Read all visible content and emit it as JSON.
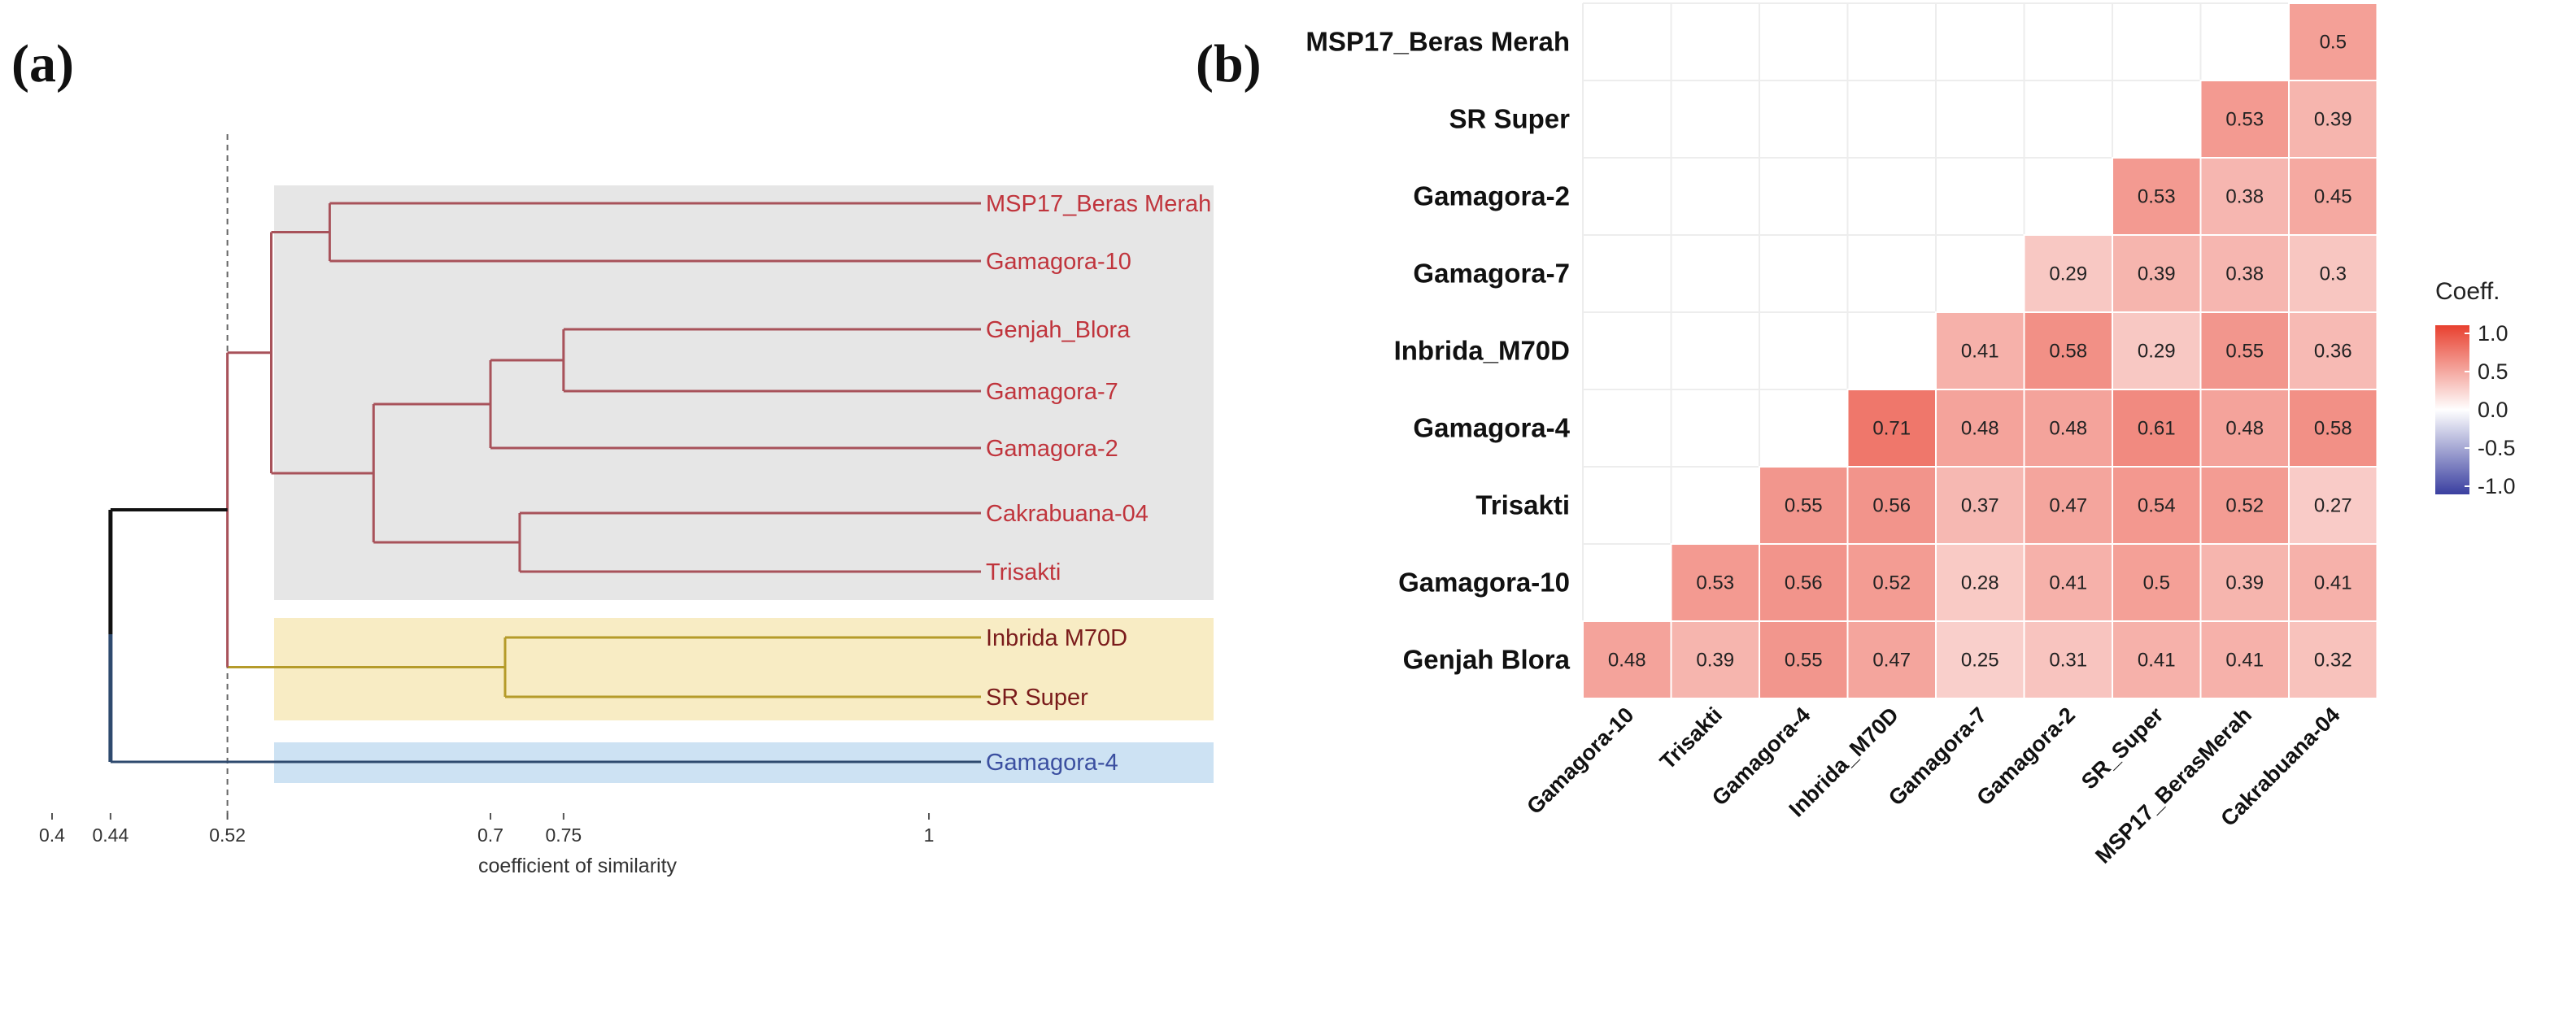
{
  "panels": {
    "a": "(a)",
    "b": "(b)"
  },
  "chart_data": [
    {
      "type": "dendrogram",
      "panel": "(a)",
      "xlabel": "coefficient of similarity",
      "xticks": [
        0.4,
        0.44,
        0.52,
        0.7,
        0.75,
        1
      ],
      "cutoff": 0.52,
      "leaves": [
        "MSP17_Beras Merah",
        "Gamagora-10",
        "Genjah_Blora",
        "Gamagora-7",
        "Gamagora-2",
        "Cakrabuana-04",
        "Trisakti",
        "Inbrida M70D",
        "SR Super",
        "Gamagora-4"
      ],
      "leaf_colors": [
        "#c0343c",
        "#c0343c",
        "#c0343c",
        "#c0343c",
        "#c0343c",
        "#c0343c",
        "#c0343c",
        "#7a1b1b",
        "#7a1b1b",
        "#3b4fa0"
      ],
      "merges": [
        {
          "a": "MSP17_Beras Merah",
          "b": "Gamagora-10",
          "similarity": 0.59
        },
        {
          "a": "Genjah_Blora",
          "b": "Gamagora-7",
          "similarity": 0.75
        },
        {
          "a": "Genjah_Blora + Gamagora-7",
          "b": "Gamagora-2",
          "similarity": 0.7
        },
        {
          "a": "Cakrabuana-04",
          "b": "Trisakti",
          "similarity": 0.72
        },
        {
          "a": "Genjah_Blora..Gamagora-2",
          "b": "Cakrabuana-04 + Trisakti",
          "similarity": 0.62
        },
        {
          "a": "MSP17 + Gamagora-10",
          "b": "Genjah..Trisakti",
          "similarity": 0.55
        },
        {
          "a": "Inbrida M70D",
          "b": "SR Super",
          "similarity": 0.71
        },
        {
          "a": "cluster I",
          "b": "cluster II",
          "similarity": 0.52
        },
        {
          "a": "clusters I+II",
          "b": "Gamagora-4",
          "similarity": 0.44
        }
      ],
      "groups": [
        {
          "name": "grey",
          "color": "#e6e6e6",
          "members": [
            "MSP17_Beras Merah",
            "Gamagora-10",
            "Genjah_Blora",
            "Gamagora-7",
            "Gamagora-2",
            "Cakrabuana-04",
            "Trisakti"
          ]
        },
        {
          "name": "yellow",
          "color": "#f8ecc4",
          "members": [
            "Inbrida M70D",
            "SR Super"
          ]
        },
        {
          "name": "blue",
          "color": "#cde2f3",
          "members": [
            "Gamagora-4"
          ]
        }
      ]
    },
    {
      "type": "heatmap",
      "panel": "(b)",
      "row_labels": [
        "MSP17_Beras Merah",
        "SR Super",
        "Gamagora-2",
        "Gamagora-7",
        "Inbrida_M70D",
        "Gamagora-4",
        "Trisakti",
        "Gamagora-10",
        "Genjah Blora"
      ],
      "col_labels": [
        "Gamagora-10",
        "Trisakti",
        "Gamagora-4",
        "Inbrida_M70D",
        "Gamagora-7",
        "Gamagora-2",
        "SR_Super",
        "MSP17_BerasMerah",
        "Cakrabuana-04"
      ],
      "values": [
        [
          null,
          null,
          null,
          null,
          null,
          null,
          null,
          null,
          0.5
        ],
        [
          null,
          null,
          null,
          null,
          null,
          null,
          null,
          0.53,
          0.39
        ],
        [
          null,
          null,
          null,
          null,
          null,
          null,
          0.53,
          0.38,
          0.45
        ],
        [
          null,
          null,
          null,
          null,
          null,
          0.29,
          0.39,
          0.38,
          0.3
        ],
        [
          null,
          null,
          null,
          null,
          0.41,
          0.58,
          0.29,
          0.55,
          0.36
        ],
        [
          null,
          null,
          null,
          0.71,
          0.48,
          0.48,
          0.61,
          0.48,
          0.58
        ],
        [
          null,
          null,
          0.55,
          0.56,
          0.37,
          0.47,
          0.54,
          0.52,
          0.27
        ],
        [
          null,
          0.53,
          0.56,
          0.52,
          0.28,
          0.41,
          0.5,
          0.39,
          0.41
        ],
        [
          0.48,
          0.39,
          0.55,
          0.47,
          0.25,
          0.31,
          0.41,
          0.41,
          0.32
        ]
      ],
      "legend": {
        "title": "Coeff.",
        "ticks": [
          "1.0",
          "0.5",
          "0.0",
          "-0.5",
          "-1.0"
        ],
        "range": [
          -1,
          1
        ],
        "low_color": "#3a3fa0",
        "mid_color": "#ffffff",
        "high_color": "#e8402f"
      }
    }
  ]
}
